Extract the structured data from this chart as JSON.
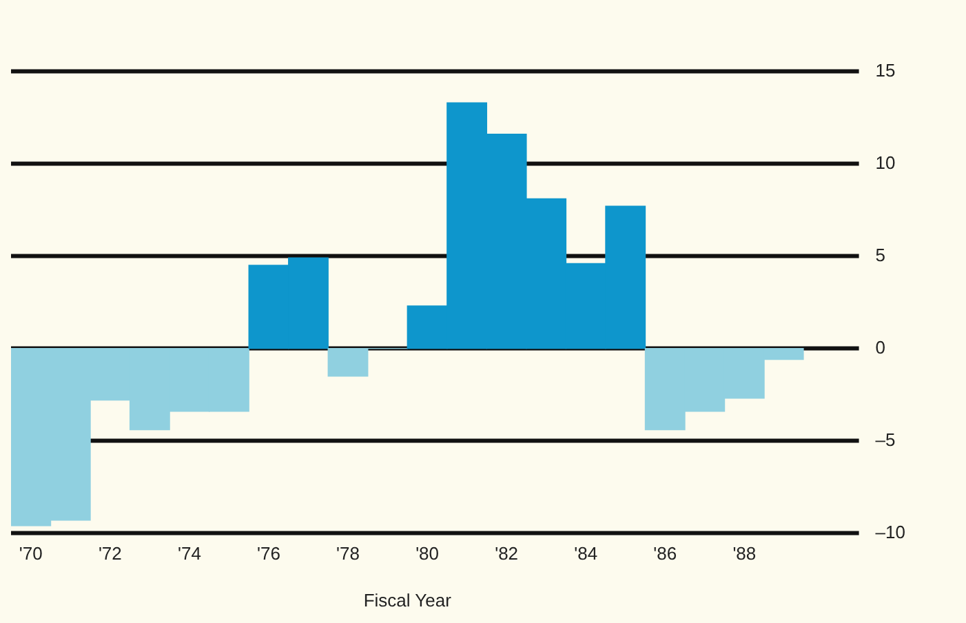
{
  "chart_data": {
    "type": "bar",
    "xlabel": "Fiscal Year",
    "categories": [
      "'70",
      null,
      "'72",
      null,
      "'74",
      null,
      "'76",
      null,
      "'78",
      null,
      "'80",
      null,
      "'82",
      null,
      "'84",
      null,
      "'86",
      null,
      "'88",
      null
    ],
    "values": [
      -9.6,
      -9.3,
      -2.8,
      -4.4,
      -3.4,
      -3.4,
      4.5,
      4.9,
      -1.5,
      0,
      2.3,
      13.3,
      11.6,
      8.1,
      4.6,
      7.7,
      -4.4,
      -3.4,
      -2.7,
      -0.6
    ],
    "colors": [
      "#90d0e0",
      "#90d0e0",
      "#90d0e0",
      "#90d0e0",
      "#90d0e0",
      "#90d0e0",
      "#0e96cc",
      "#0e96cc",
      "#90d0e0",
      "#90d0e0",
      "#0e96cc",
      "#0e96cc",
      "#0e96cc",
      "#0e96cc",
      "#0e96cc",
      "#0e96cc",
      "#90d0e0",
      "#90d0e0",
      "#90d0e0",
      "#90d0e0"
    ],
    "ylim": [
      -10,
      15
    ],
    "yticks": [
      {
        "value": -10,
        "label": "–10"
      },
      {
        "value": -5,
        "label": "–5"
      },
      0,
      5,
      10,
      15
    ],
    "grid": "y",
    "legend": false
  }
}
